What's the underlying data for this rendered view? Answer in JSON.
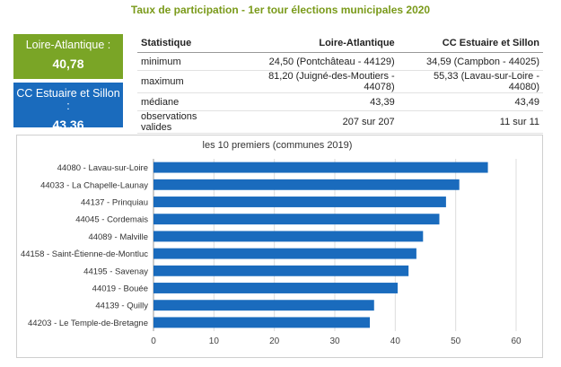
{
  "title": "Taux de participation - 1er tour élections municipales 2020",
  "colors": {
    "green": "#7aa526",
    "blue": "#1a6bbd",
    "bar": "#1a6bbd",
    "title": "#7a9a1a"
  },
  "boxes": {
    "loire": {
      "label": "Loire-Atlantique :",
      "value": "40,78"
    },
    "cc": {
      "label": "CC Estuaire et Sillon :",
      "value": "43,36"
    }
  },
  "stats": {
    "headers": [
      "Statistique",
      "Loire-Atlantique",
      "CC Estuaire et Sillon"
    ],
    "rows": [
      [
        "minimum",
        "24,50 (Pontchâteau - 44129)",
        "34,59 (Campbon - 44025)"
      ],
      [
        "maximum",
        "81,20 (Juigné-des-Moutiers - 44078)",
        "55,33 (Lavau-sur-Loire - 44080)"
      ],
      [
        "médiane",
        "43,39",
        "43,49"
      ],
      [
        "observations valides",
        "207 sur 207",
        "11 sur 11"
      ]
    ]
  },
  "chart_data": {
    "type": "bar",
    "orientation": "horizontal",
    "title": "les 10 premiers (communes 2019)",
    "categories": [
      "44080 - Lavau-sur-Loire",
      "44033 - La Chapelle-Launay",
      "44137 - Prinquiau",
      "44045 - Cordemais",
      "44089 - Malville",
      "44158 - Saint-Étienne-de-Montluc",
      "44195 - Savenay",
      "44019 - Bouée",
      "44139 - Quilly",
      "44203 - Le Temple-de-Bretagne"
    ],
    "values": [
      55.33,
      50.6,
      48.4,
      47.3,
      44.6,
      43.5,
      42.2,
      40.4,
      36.5,
      35.8
    ],
    "xlim": [
      0,
      60
    ],
    "xticks": [
      0,
      10,
      20,
      30,
      40,
      50,
      60
    ],
    "grid": true
  }
}
